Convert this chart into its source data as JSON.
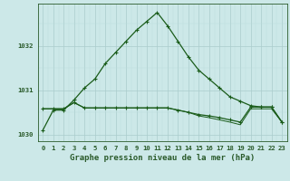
{
  "title": "Graphe pression niveau de la mer (hPa)",
  "bg_color": "#cce8e8",
  "grid_color_major": "#aacccc",
  "grid_color_minor": "#bbdddd",
  "line_color": "#1a5c1a",
  "axis_color": "#2a5a2a",
  "hours": [
    0,
    1,
    2,
    3,
    4,
    5,
    6,
    7,
    8,
    9,
    10,
    11,
    12,
    13,
    14,
    15,
    16,
    17,
    18,
    19,
    20,
    21,
    22,
    23
  ],
  "series1": [
    1030.1,
    1030.55,
    1030.55,
    1030.78,
    1031.05,
    1031.25,
    1031.6,
    1031.85,
    1032.1,
    1032.35,
    1032.55,
    1032.75,
    1032.45,
    1032.1,
    1031.75,
    1031.45,
    1031.25,
    1031.05,
    1030.85,
    1030.75,
    1030.65,
    1030.62,
    1030.62,
    1030.28
  ],
  "series2": [
    1030.58,
    1030.58,
    1030.58,
    1030.72,
    1030.6,
    1030.6,
    1030.6,
    1030.6,
    1030.6,
    1030.6,
    1030.6,
    1030.6,
    1030.6,
    1030.55,
    1030.5,
    1030.45,
    1030.42,
    1030.38,
    1030.33,
    1030.28,
    1030.62,
    1030.62,
    1030.62,
    1030.28
  ],
  "series3": [
    1030.58,
    1030.58,
    1030.58,
    1030.72,
    1030.6,
    1030.6,
    1030.6,
    1030.6,
    1030.6,
    1030.6,
    1030.6,
    1030.6,
    1030.6,
    1030.55,
    1030.5,
    1030.42,
    1030.38,
    1030.33,
    1030.28,
    1030.22,
    1030.58,
    1030.58,
    1030.58,
    1030.28
  ],
  "ylim": [
    1029.85,
    1032.95
  ],
  "yticks": [
    1030,
    1031,
    1032
  ],
  "title_fontsize": 6.5,
  "tick_fontsize": 5.2
}
